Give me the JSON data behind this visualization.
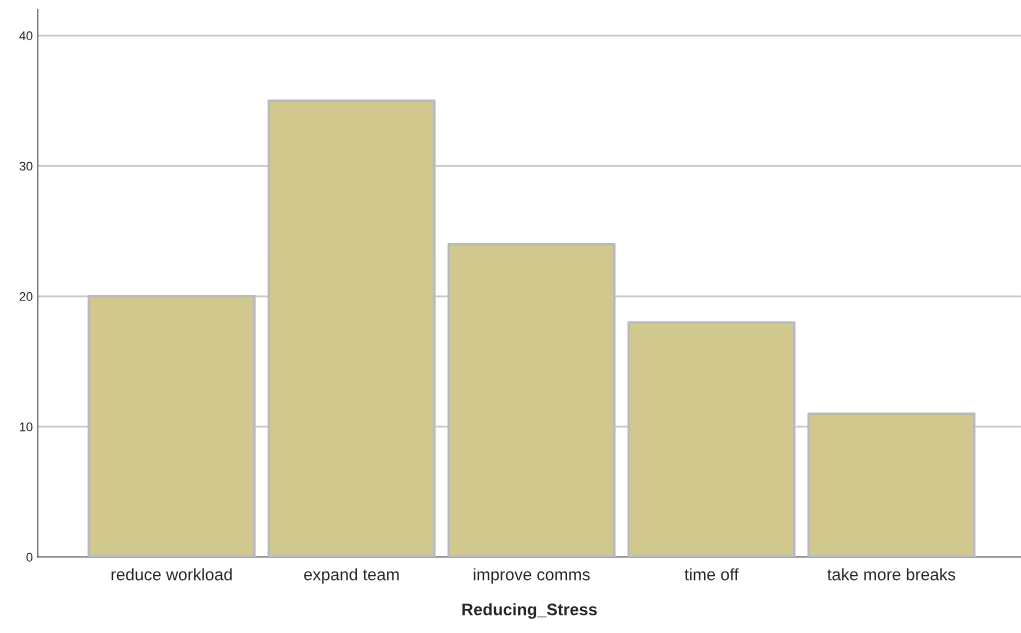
{
  "chart_data": {
    "type": "bar",
    "xlabel": "Reducing_Stress",
    "categories": [
      "reduce workload",
      "expand team",
      "improve comms",
      "time off",
      "take more breaks"
    ],
    "values": [
      20,
      35,
      24,
      18,
      11
    ],
    "color": "#d0c88c",
    "ylim": [
      0,
      42
    ],
    "yticks": [
      0,
      10,
      20,
      30,
      40
    ],
    "grid": "y"
  }
}
